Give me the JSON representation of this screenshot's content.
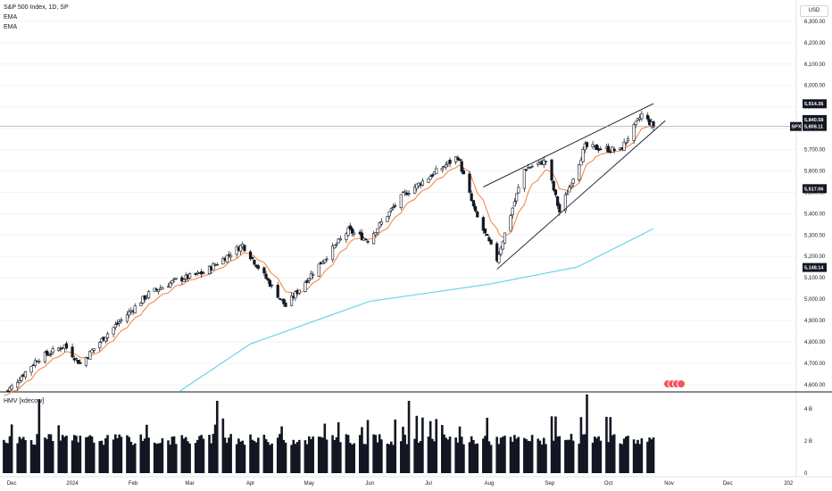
{
  "header": {
    "symbol_title": "S&P 500 Index, 1D, SP",
    "indicator_1": "EMA",
    "indicator_2": "EMA",
    "currency": "USD",
    "volume_title": "HMV [xdecow]"
  },
  "colors": {
    "up_candle": "#ffffff",
    "down_candle": "#131722",
    "ema_fast": "#f57f3a",
    "ema_slow": "#5ed3e6",
    "wedge": "#131722",
    "volume": "#131722",
    "event_marker": "#f7525f"
  },
  "chart_data": {
    "type": "candlestick",
    "symbol": "SPX",
    "timeframe": "1D",
    "y_axis": {
      "range": [
        4570,
        6400
      ],
      "ticks": [
        "4,600.00",
        "4,700.00",
        "4,800.00",
        "4,900.00",
        "5,000.00",
        "5,100.00",
        "5,200.00",
        "5,300.00",
        "5,400.00",
        "5,500.00",
        "5,600.00",
        "5,700.00",
        "5,800.00",
        "5,900.00",
        "6,000.00",
        "6,100.00",
        "6,200.00",
        "6,300.00"
      ],
      "tick_values": [
        4600,
        4700,
        4800,
        4900,
        5000,
        5100,
        5200,
        5300,
        5400,
        5500,
        5600,
        5700,
        5800,
        5900,
        6000,
        6100,
        6200,
        6300
      ]
    },
    "x_axis": {
      "start": "2023-11-25",
      "end": "2025-01-05",
      "tick_labels": [
        "Dec",
        "2024",
        "Feb",
        "Mar",
        "Apr",
        "May",
        "Jun",
        "Jul",
        "Aug",
        "Sep",
        "Oct",
        "Nov",
        "Dec",
        "202"
      ],
      "tick_dates": [
        "2023-12-01",
        "2024-01-01",
        "2024-02-01",
        "2024-03-01",
        "2024-04-01",
        "2024-05-01",
        "2024-06-01",
        "2024-07-01",
        "2024-08-01",
        "2024-09-01",
        "2024-10-01",
        "2024-11-01",
        "2024-12-01",
        "2025-01-01"
      ]
    },
    "price_tags": [
      {
        "label": "",
        "value": "5,914.36",
        "price": 5914.36,
        "style": "dark"
      },
      {
        "label": "",
        "value": "5,840.58",
        "price": 5840.58,
        "style": "dark"
      },
      {
        "label": "SPX",
        "value": "5,808.11",
        "price": 5808.11,
        "style": "dark"
      },
      {
        "label": "",
        "value": "5,517.06",
        "price": 5517.06,
        "style": "dark"
      },
      {
        "label": "",
        "value": "5,148.14",
        "price": 5148.14,
        "style": "dark"
      }
    ],
    "key_closes": [
      {
        "date": "2023-11-27",
        "close": 4550
      },
      {
        "date": "2023-12-14",
        "close": 4719
      },
      {
        "date": "2023-12-28",
        "close": 4783
      },
      {
        "date": "2024-01-05",
        "close": 4697
      },
      {
        "date": "2024-01-19",
        "close": 4840
      },
      {
        "date": "2024-02-09",
        "close": 5026
      },
      {
        "date": "2024-02-23",
        "close": 5088
      },
      {
        "date": "2024-03-08",
        "close": 5123
      },
      {
        "date": "2024-03-28",
        "close": 5254
      },
      {
        "date": "2024-04-19",
        "close": 4967
      },
      {
        "date": "2024-05-03",
        "close": 5127
      },
      {
        "date": "2024-05-21",
        "close": 5321
      },
      {
        "date": "2024-05-31",
        "close": 5277
      },
      {
        "date": "2024-06-18",
        "close": 5487
      },
      {
        "date": "2024-07-16",
        "close": 5667
      },
      {
        "date": "2024-07-25",
        "close": 5400
      },
      {
        "date": "2024-08-05",
        "close": 5186
      },
      {
        "date": "2024-08-19",
        "close": 5608
      },
      {
        "date": "2024-08-30",
        "close": 5648
      },
      {
        "date": "2024-09-06",
        "close": 5408
      },
      {
        "date": "2024-09-19",
        "close": 5713
      },
      {
        "date": "2024-10-07",
        "close": 5695
      },
      {
        "date": "2024-10-18",
        "close": 5864
      },
      {
        "date": "2024-10-24",
        "close": 5808
      }
    ],
    "ema_slow_points": [
      {
        "date": "2024-02-25",
        "value": 4570
      },
      {
        "date": "2024-04-01",
        "value": 4790
      },
      {
        "date": "2024-06-01",
        "value": 4990
      },
      {
        "date": "2024-08-01",
        "value": 5070
      },
      {
        "date": "2024-09-15",
        "value": 5150
      },
      {
        "date": "2024-10-24",
        "value": 5330
      }
    ],
    "wedge_lines": [
      {
        "from": {
          "date": "2024-07-29",
          "price": 5525
        },
        "to": {
          "date": "2024-10-24",
          "price": 5915
        }
      },
      {
        "from": {
          "date": "2024-08-05",
          "price": 5140
        },
        "to": {
          "date": "2024-10-30",
          "price": 5835
        }
      }
    ],
    "volume": {
      "y_ticks": [
        "4 B",
        "2 B",
        "0"
      ],
      "y_tick_values": [
        4,
        2,
        0
      ],
      "range": [
        0,
        5
      ],
      "spikes": [
        {
          "date": "2023-12-15",
          "value": 4.6
        },
        {
          "date": "2024-03-15",
          "value": 4.5
        },
        {
          "date": "2024-06-21",
          "value": 4.5
        },
        {
          "date": "2024-09-20",
          "value": 4.9
        }
      ]
    }
  }
}
